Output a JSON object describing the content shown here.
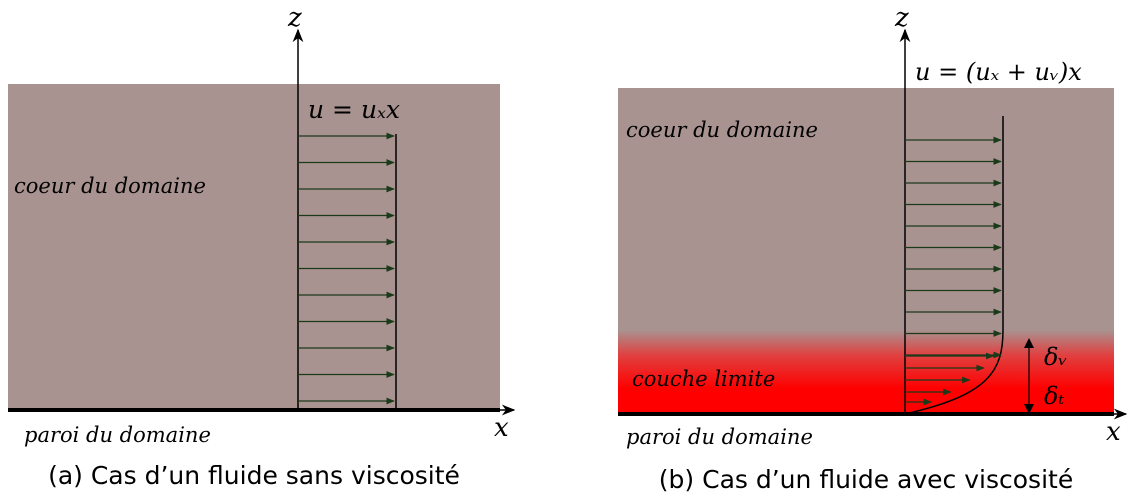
{
  "panel_a": {
    "axis_z_label": "z",
    "axis_x_label": "x",
    "velocity_label": "u = uₓx",
    "core_label": "coeur du domaine",
    "wall_label": "paroi du domaine",
    "caption": "(a) Cas d’un fluide sans viscosité"
  },
  "panel_b": {
    "axis_z_label": "z",
    "axis_x_label": "x",
    "velocity_label": "u = (uₓ + uᵥ)x",
    "core_label": "coeur du domaine",
    "boundary_layer_label": "couche limite",
    "wall_label": "paroi du domaine",
    "delta_v_label": "δᵥ",
    "delta_t_label": "δₜ",
    "caption": "(b) Cas d’un fluide avec viscosité"
  },
  "colors": {
    "domain_fill": "#a89390",
    "boundary_layer": "#ff0000",
    "wall": "#000000",
    "arrow": "#1a3a1a"
  }
}
